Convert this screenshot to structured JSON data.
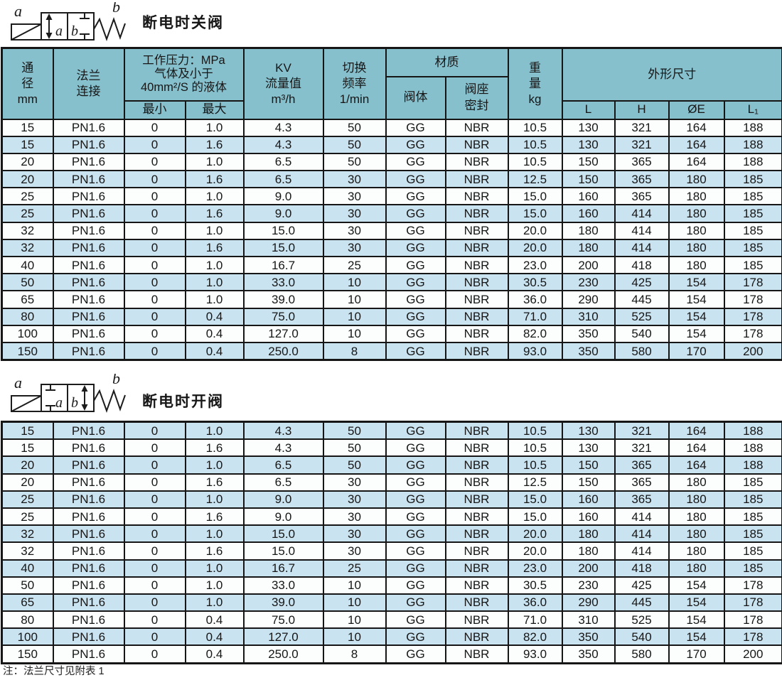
{
  "colors": {
    "header_bg": "#87c0cd",
    "row_alt": "#cae3f0",
    "row_base": "#fcfdfd",
    "border": "#161616",
    "text": "#161616"
  },
  "sections": {
    "closed": {
      "title": "断电时关阀",
      "symbol_label_left": "a",
      "symbol_label_right": "b",
      "symbol_inner_left": "a",
      "symbol_inner_right": "b"
    },
    "open": {
      "title": "断电时开阀",
      "symbol_label_left": "a",
      "symbol_label_right": "b",
      "symbol_inner_left": "a",
      "symbol_inner_right": "b"
    }
  },
  "note": "注：法兰尺寸见附表 1",
  "table": {
    "headers": {
      "dn": "通\n径\nmm",
      "flange": "法兰\n连接",
      "pressure": "工作压力：MPa\n气体及小于\n40mm²/S 的液体",
      "min": "最小",
      "max": "最大",
      "kv": "KV\n流量值\nm³/h",
      "freq": "切换\n频率\n1/min",
      "material": "材质",
      "body": "阀体",
      "seat": "阀座\n密封",
      "weight": "重\n量\nkg",
      "dims": "外形尺寸",
      "L": "L",
      "H": "H",
      "OE": "ØE",
      "L1": "L₁"
    },
    "rows": [
      [
        "15",
        "PN1.6",
        "0",
        "1.0",
        "4.3",
        "50",
        "GG",
        "NBR",
        "10.5",
        "130",
        "321",
        "164",
        "188"
      ],
      [
        "15",
        "PN1.6",
        "0",
        "1.6",
        "4.3",
        "50",
        "GG",
        "NBR",
        "10.5",
        "130",
        "321",
        "164",
        "188"
      ],
      [
        "20",
        "PN1.6",
        "0",
        "1.0",
        "6.5",
        "50",
        "GG",
        "NBR",
        "10.5",
        "150",
        "365",
        "164",
        "188"
      ],
      [
        "20",
        "PN1.6",
        "0",
        "1.6",
        "6.5",
        "30",
        "GG",
        "NBR",
        "12.5",
        "150",
        "365",
        "180",
        "185"
      ],
      [
        "25",
        "PN1.6",
        "0",
        "1.0",
        "9.0",
        "30",
        "GG",
        "NBR",
        "15.0",
        "160",
        "365",
        "180",
        "185"
      ],
      [
        "25",
        "PN1.6",
        "0",
        "1.6",
        "9.0",
        "30",
        "GG",
        "NBR",
        "15.0",
        "160",
        "414",
        "180",
        "185"
      ],
      [
        "32",
        "PN1.6",
        "0",
        "1.0",
        "15.0",
        "30",
        "GG",
        "NBR",
        "20.0",
        "180",
        "414",
        "180",
        "185"
      ],
      [
        "32",
        "PN1.6",
        "0",
        "1.6",
        "15.0",
        "30",
        "GG",
        "NBR",
        "20.0",
        "180",
        "414",
        "180",
        "185"
      ],
      [
        "40",
        "PN1.6",
        "0",
        "1.0",
        "16.7",
        "25",
        "GG",
        "NBR",
        "23.0",
        "200",
        "418",
        "180",
        "185"
      ],
      [
        "50",
        "PN1.6",
        "0",
        "1.0",
        "33.0",
        "10",
        "GG",
        "NBR",
        "30.5",
        "230",
        "425",
        "154",
        "178"
      ],
      [
        "65",
        "PN1.6",
        "0",
        "1.0",
        "39.0",
        "10",
        "GG",
        "NBR",
        "36.0",
        "290",
        "445",
        "154",
        "178"
      ],
      [
        "80",
        "PN1.6",
        "0",
        "0.4",
        "75.0",
        "10",
        "GG",
        "NBR",
        "71.0",
        "310",
        "525",
        "154",
        "178"
      ],
      [
        "100",
        "PN1.6",
        "0",
        "0.4",
        "127.0",
        "10",
        "GG",
        "NBR",
        "82.0",
        "350",
        "540",
        "154",
        "178"
      ],
      [
        "150",
        "PN1.6",
        "0",
        "0.4",
        "250.0",
        "8",
        "GG",
        "NBR",
        "93.0",
        "350",
        "580",
        "170",
        "200"
      ]
    ]
  }
}
